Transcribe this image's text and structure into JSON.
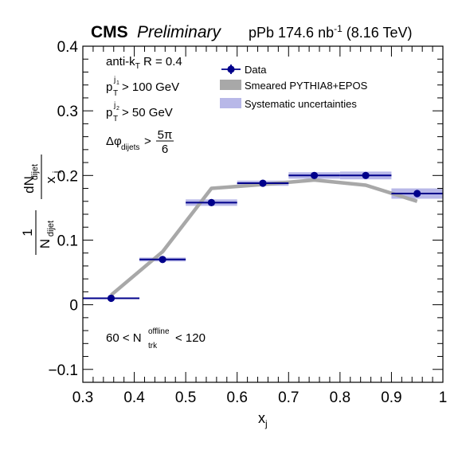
{
  "header": {
    "experiment": "CMS",
    "status": "Preliminary",
    "dataset_pre": "pPb 174.6 nb",
    "dataset_exp": "-1",
    "dataset_post": " (8.16 TeV)"
  },
  "cuts": {
    "algo_pre": "anti-k",
    "algo_sub": "T",
    "algo_post": " R = 0.4",
    "pt1_main": "p",
    "pt1_sup": "j",
    "pt1_supsub": "1",
    "pt1_sub": "T",
    "pt1_rest": " > 100 GeV",
    "pt2_main": "p",
    "pt2_sup": "j",
    "pt2_supsub": "2",
    "pt2_sub": "T",
    "pt2_rest": " > 50 GeV",
    "dphi_main": "Δφ",
    "dphi_sub": "dijets",
    "dphi_gt": " > ",
    "dphi_num": "5π",
    "dphi_den": "6"
  },
  "multiplicity": {
    "pre": "60 < N",
    "sup": "offline",
    "sub": "trk",
    "post": " < 120"
  },
  "legend": {
    "data": "Data",
    "model": "Smeared PYTHIA8+EPOS",
    "syst": "Systematic uncertainties"
  },
  "axis_labels": {
    "x_main": "x",
    "x_sub": "j",
    "y_one": "1",
    "y_N": "N",
    "y_N_sub": "dijet",
    "y_dN": "dN",
    "y_dN_sub": "dijet",
    "y_dx": "x",
    "y_dx_sub": "j"
  },
  "colors": {
    "data": "#00008b",
    "model": "#a8a8a8",
    "syst": "#b8b8e8"
  },
  "chart_data": {
    "type": "scatter",
    "xlim": [
      0.3,
      1.0
    ],
    "ylim": [
      -0.12,
      0.4
    ],
    "x_ticks": [
      0.3,
      0.4,
      0.5,
      0.6,
      0.7,
      0.8,
      0.9,
      1.0
    ],
    "x_tick_labels": [
      "0.3",
      "0.4",
      "0.5",
      "0.6",
      "0.7",
      "0.8",
      "0.9",
      "1"
    ],
    "y_ticks": [
      -0.1,
      0,
      0.1,
      0.2,
      0.3,
      0.4
    ],
    "y_tick_labels": [
      "−0.1",
      "0",
      "0.1",
      "0.2",
      "0.3",
      "0.4"
    ],
    "series": [
      {
        "name": "Data",
        "bins": [
          [
            0.3,
            0.41
          ],
          [
            0.41,
            0.5
          ],
          [
            0.5,
            0.6
          ],
          [
            0.6,
            0.7
          ],
          [
            0.7,
            0.8
          ],
          [
            0.8,
            0.9
          ],
          [
            0.9,
            1.0
          ]
        ],
        "x": [
          0.355,
          0.455,
          0.55,
          0.65,
          0.75,
          0.85,
          0.95
        ],
        "y": [
          0.01,
          0.07,
          0.158,
          0.188,
          0.2,
          0.2,
          0.172
        ],
        "syst": [
          0.001,
          0.003,
          0.005,
          0.004,
          0.005,
          0.006,
          0.008
        ]
      },
      {
        "name": "Smeared PYTHIA8+EPOS",
        "x": [
          0.355,
          0.455,
          0.55,
          0.65,
          0.75,
          0.85,
          0.95
        ],
        "y": [
          0.015,
          0.082,
          0.18,
          0.186,
          0.193,
          0.185,
          0.16
        ]
      }
    ],
    "legend_position": "top-right"
  }
}
